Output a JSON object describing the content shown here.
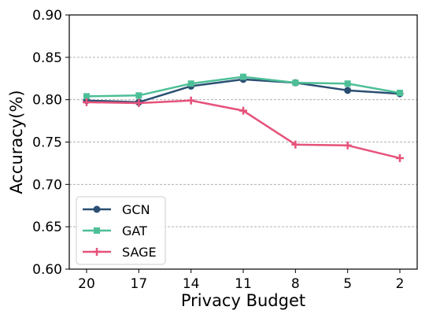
{
  "chart_data": {
    "type": "line",
    "title": "",
    "xlabel": "Privacy Budget",
    "ylabel": "Accuracy(%)",
    "categories": [
      "20",
      "17",
      "14",
      "11",
      "8",
      "5",
      "2"
    ],
    "ylim": [
      0.6,
      0.9
    ],
    "yticks": [
      "0.60",
      "0.65",
      "0.70",
      "0.75",
      "0.80",
      "0.85",
      "0.90"
    ],
    "grid": "horizontal-dashed",
    "legend_position": "lower-left",
    "series": [
      {
        "name": "GCN",
        "color": "#2b4f73",
        "marker": "circle",
        "values": [
          0.799,
          0.797,
          0.816,
          0.824,
          0.82,
          0.811,
          0.807
        ]
      },
      {
        "name": "GAT",
        "color": "#4dbf96",
        "marker": "square",
        "values": [
          0.804,
          0.805,
          0.819,
          0.827,
          0.82,
          0.819,
          0.808
        ]
      },
      {
        "name": "SAGE",
        "color": "#e6527a",
        "marker": "plus",
        "values": [
          0.797,
          0.796,
          0.799,
          0.787,
          0.747,
          0.746,
          0.731
        ]
      }
    ]
  }
}
